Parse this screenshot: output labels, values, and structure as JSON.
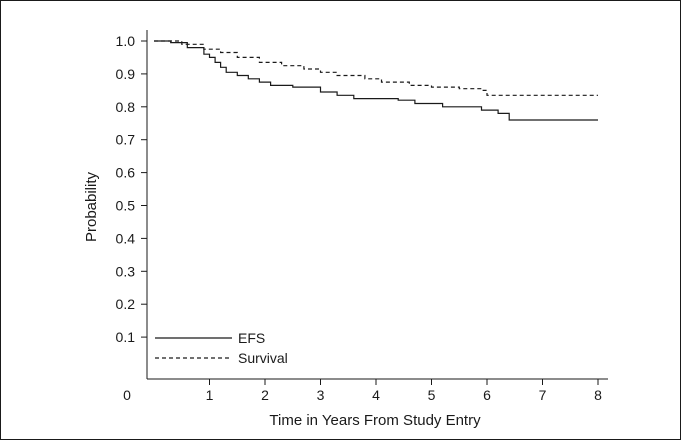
{
  "chart_data": {
    "type": "line",
    "title": "",
    "xlabel": "Time in Years From Study Entry",
    "ylabel": "Probability",
    "xlim": [
      0,
      8
    ],
    "ylim": [
      0,
      1.0
    ],
    "x_ticks": [
      "1",
      "2",
      "3",
      "4",
      "5",
      "6",
      "7",
      "8"
    ],
    "y_ticks": [
      "0.1",
      "0.2",
      "0.3",
      "0.4",
      "0.5",
      "0.6",
      "0.7",
      "0.8",
      "0.9",
      "1.0"
    ],
    "origin_label": "0",
    "grid": false,
    "legend_position": "bottom-left",
    "series": [
      {
        "name": "EFS",
        "line_style": "solid",
        "color": "#1a1a1a",
        "points": [
          [
            0,
            1.0
          ],
          [
            0.3,
            0.995
          ],
          [
            0.6,
            0.98
          ],
          [
            0.9,
            0.96
          ],
          [
            1.0,
            0.95
          ],
          [
            1.1,
            0.935
          ],
          [
            1.2,
            0.92
          ],
          [
            1.3,
            0.905
          ],
          [
            1.5,
            0.895
          ],
          [
            1.7,
            0.885
          ],
          [
            1.9,
            0.875
          ],
          [
            2.1,
            0.865
          ],
          [
            2.5,
            0.86
          ],
          [
            3.0,
            0.845
          ],
          [
            3.3,
            0.835
          ],
          [
            3.6,
            0.825
          ],
          [
            4.4,
            0.82
          ],
          [
            4.7,
            0.81
          ],
          [
            5.2,
            0.8
          ],
          [
            5.9,
            0.79
          ],
          [
            6.2,
            0.78
          ],
          [
            6.4,
            0.76
          ],
          [
            8.0,
            0.76
          ]
        ]
      },
      {
        "name": "Survival",
        "line_style": "dashed",
        "color": "#1a1a1a",
        "points": [
          [
            0,
            1.0
          ],
          [
            0.5,
            0.99
          ],
          [
            0.9,
            0.975
          ],
          [
            1.2,
            0.965
          ],
          [
            1.5,
            0.95
          ],
          [
            1.9,
            0.935
          ],
          [
            2.3,
            0.925
          ],
          [
            2.7,
            0.915
          ],
          [
            3.0,
            0.905
          ],
          [
            3.3,
            0.895
          ],
          [
            3.8,
            0.885
          ],
          [
            4.1,
            0.875
          ],
          [
            4.6,
            0.865
          ],
          [
            5.0,
            0.86
          ],
          [
            5.5,
            0.855
          ],
          [
            5.9,
            0.85
          ],
          [
            6.0,
            0.835
          ],
          [
            8.0,
            0.835
          ]
        ]
      }
    ]
  }
}
